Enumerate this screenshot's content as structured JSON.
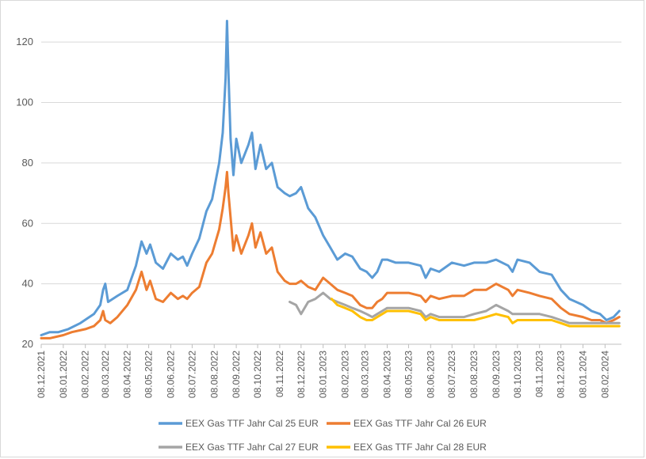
{
  "chart_data": {
    "type": "line",
    "title": "",
    "xlabel": "",
    "ylabel": "",
    "ylim": [
      20,
      130
    ],
    "y_ticks": [
      20,
      40,
      60,
      80,
      100,
      120
    ],
    "x_ticks": [
      "08.12.2021",
      "08.01.2022",
      "08.02.2022",
      "08.03.2022",
      "08.04.2022",
      "08.05.2022",
      "08.06.2022",
      "08.07.2022",
      "08.08.2022",
      "08.09.2022",
      "08.10.2022",
      "08.11.2022",
      "08.12.2022",
      "08.01.2023",
      "08.02.2023",
      "08.03.2023",
      "08.04.2023",
      "08.05.2023",
      "08.06.2023",
      "08.07.2023",
      "08.08.2023",
      "08.09.2023",
      "08.10.2023",
      "08.11.2023",
      "08.12.2023",
      "08.01.2024",
      "08.02.2024"
    ],
    "grid": "horizontal",
    "legend_position": "bottom",
    "series": [
      {
        "name": "EEX Gas TTF Jahr Cal 25 EUR",
        "color": "#5b9bd5",
        "points": [
          [
            "2021-12-08",
            23
          ],
          [
            "2021-12-20",
            24
          ],
          [
            "2022-01-01",
            24
          ],
          [
            "2022-01-15",
            25
          ],
          [
            "2022-02-01",
            27
          ],
          [
            "2022-02-20",
            30
          ],
          [
            "2022-03-01",
            33
          ],
          [
            "2022-03-05",
            38
          ],
          [
            "2022-03-08",
            40
          ],
          [
            "2022-03-12",
            34
          ],
          [
            "2022-03-25",
            36
          ],
          [
            "2022-04-08",
            38
          ],
          [
            "2022-04-20",
            46
          ],
          [
            "2022-04-28",
            54
          ],
          [
            "2022-05-05",
            50
          ],
          [
            "2022-05-10",
            53
          ],
          [
            "2022-05-18",
            47
          ],
          [
            "2022-05-28",
            45
          ],
          [
            "2022-06-08",
            50
          ],
          [
            "2022-06-18",
            48
          ],
          [
            "2022-06-25",
            49
          ],
          [
            "2022-07-01",
            46
          ],
          [
            "2022-07-08",
            50
          ],
          [
            "2022-07-18",
            55
          ],
          [
            "2022-07-28",
            64
          ],
          [
            "2022-08-05",
            68
          ],
          [
            "2022-08-15",
            80
          ],
          [
            "2022-08-20",
            90
          ],
          [
            "2022-08-24",
            108
          ],
          [
            "2022-08-26",
            127
          ],
          [
            "2022-08-28",
            110
          ],
          [
            "2022-08-31",
            88
          ],
          [
            "2022-09-04",
            76
          ],
          [
            "2022-09-08",
            88
          ],
          [
            "2022-09-15",
            80
          ],
          [
            "2022-09-25",
            86
          ],
          [
            "2022-09-30",
            90
          ],
          [
            "2022-10-05",
            78
          ],
          [
            "2022-10-12",
            86
          ],
          [
            "2022-10-20",
            78
          ],
          [
            "2022-10-28",
            80
          ],
          [
            "2022-11-05",
            72
          ],
          [
            "2022-11-15",
            70
          ],
          [
            "2022-11-22",
            69
          ],
          [
            "2022-12-01",
            70
          ],
          [
            "2022-12-08",
            72
          ],
          [
            "2022-12-18",
            65
          ],
          [
            "2022-12-28",
            62
          ],
          [
            "2023-01-08",
            56
          ],
          [
            "2023-01-18",
            52
          ],
          [
            "2023-01-28",
            48
          ],
          [
            "2023-02-08",
            50
          ],
          [
            "2023-02-18",
            49
          ],
          [
            "2023-03-01",
            45
          ],
          [
            "2023-03-10",
            44
          ],
          [
            "2023-03-18",
            42
          ],
          [
            "2023-03-25",
            44
          ],
          [
            "2023-04-01",
            48
          ],
          [
            "2023-04-08",
            48
          ],
          [
            "2023-04-20",
            47
          ],
          [
            "2023-05-08",
            47
          ],
          [
            "2023-05-25",
            46
          ],
          [
            "2023-06-01",
            42
          ],
          [
            "2023-06-08",
            45
          ],
          [
            "2023-06-20",
            44
          ],
          [
            "2023-07-08",
            47
          ],
          [
            "2023-07-25",
            46
          ],
          [
            "2023-08-08",
            47
          ],
          [
            "2023-08-25",
            47
          ],
          [
            "2023-09-08",
            48
          ],
          [
            "2023-09-25",
            46
          ],
          [
            "2023-10-01",
            44
          ],
          [
            "2023-10-08",
            48
          ],
          [
            "2023-10-25",
            47
          ],
          [
            "2023-11-08",
            44
          ],
          [
            "2023-11-25",
            43
          ],
          [
            "2023-12-08",
            38
          ],
          [
            "2023-12-20",
            35
          ],
          [
            "2024-01-08",
            33
          ],
          [
            "2024-01-20",
            31
          ],
          [
            "2024-02-01",
            30
          ],
          [
            "2024-02-10",
            28
          ],
          [
            "2024-02-20",
            29
          ],
          [
            "2024-02-28",
            31
          ]
        ]
      },
      {
        "name": "EEX Gas TTF Jahr Cal 26 EUR",
        "color": "#ed7d31",
        "points": [
          [
            "2021-12-08",
            22
          ],
          [
            "2021-12-20",
            22
          ],
          [
            "2022-01-08",
            23
          ],
          [
            "2022-01-20",
            24
          ],
          [
            "2022-02-08",
            25
          ],
          [
            "2022-02-20",
            26
          ],
          [
            "2022-03-01",
            28
          ],
          [
            "2022-03-05",
            31
          ],
          [
            "2022-03-08",
            28
          ],
          [
            "2022-03-15",
            27
          ],
          [
            "2022-03-25",
            29
          ],
          [
            "2022-04-08",
            33
          ],
          [
            "2022-04-20",
            38
          ],
          [
            "2022-04-28",
            44
          ],
          [
            "2022-05-05",
            38
          ],
          [
            "2022-05-10",
            41
          ],
          [
            "2022-05-18",
            35
          ],
          [
            "2022-05-28",
            34
          ],
          [
            "2022-06-08",
            37
          ],
          [
            "2022-06-18",
            35
          ],
          [
            "2022-06-25",
            36
          ],
          [
            "2022-07-01",
            35
          ],
          [
            "2022-07-08",
            37
          ],
          [
            "2022-07-18",
            39
          ],
          [
            "2022-07-28",
            47
          ],
          [
            "2022-08-05",
            50
          ],
          [
            "2022-08-15",
            58
          ],
          [
            "2022-08-20",
            65
          ],
          [
            "2022-08-24",
            72
          ],
          [
            "2022-08-26",
            77
          ],
          [
            "2022-08-28",
            70
          ],
          [
            "2022-08-31",
            62
          ],
          [
            "2022-09-04",
            51
          ],
          [
            "2022-09-08",
            56
          ],
          [
            "2022-09-15",
            50
          ],
          [
            "2022-09-25",
            56
          ],
          [
            "2022-09-30",
            60
          ],
          [
            "2022-10-05",
            52
          ],
          [
            "2022-10-12",
            57
          ],
          [
            "2022-10-20",
            50
          ],
          [
            "2022-10-28",
            52
          ],
          [
            "2022-11-05",
            44
          ],
          [
            "2022-11-15",
            41
          ],
          [
            "2022-11-22",
            40
          ],
          [
            "2022-12-01",
            40
          ],
          [
            "2022-12-08",
            41
          ],
          [
            "2022-12-18",
            39
          ],
          [
            "2022-12-28",
            38
          ],
          [
            "2023-01-08",
            42
          ],
          [
            "2023-01-18",
            40
          ],
          [
            "2023-01-28",
            38
          ],
          [
            "2023-02-08",
            37
          ],
          [
            "2023-02-18",
            36
          ],
          [
            "2023-03-01",
            33
          ],
          [
            "2023-03-10",
            32
          ],
          [
            "2023-03-18",
            32
          ],
          [
            "2023-03-25",
            34
          ],
          [
            "2023-04-01",
            35
          ],
          [
            "2023-04-08",
            37
          ],
          [
            "2023-04-20",
            37
          ],
          [
            "2023-05-08",
            37
          ],
          [
            "2023-05-25",
            36
          ],
          [
            "2023-06-01",
            34
          ],
          [
            "2023-06-08",
            36
          ],
          [
            "2023-06-20",
            35
          ],
          [
            "2023-07-08",
            36
          ],
          [
            "2023-07-25",
            36
          ],
          [
            "2023-08-08",
            38
          ],
          [
            "2023-08-25",
            38
          ],
          [
            "2023-09-08",
            40
          ],
          [
            "2023-09-25",
            38
          ],
          [
            "2023-10-01",
            36
          ],
          [
            "2023-10-08",
            38
          ],
          [
            "2023-10-25",
            37
          ],
          [
            "2023-11-08",
            36
          ],
          [
            "2023-11-25",
            35
          ],
          [
            "2023-12-08",
            32
          ],
          [
            "2023-12-20",
            30
          ],
          [
            "2024-01-08",
            29
          ],
          [
            "2024-01-20",
            28
          ],
          [
            "2024-02-01",
            28
          ],
          [
            "2024-02-10",
            27
          ],
          [
            "2024-02-20",
            28
          ],
          [
            "2024-02-28",
            29
          ]
        ]
      },
      {
        "name": "EEX Gas TTF Jahr Cal 27 EUR",
        "color": "#a5a5a5",
        "points": [
          [
            "2022-11-22",
            34
          ],
          [
            "2022-12-01",
            33
          ],
          [
            "2022-12-08",
            30
          ],
          [
            "2022-12-18",
            34
          ],
          [
            "2022-12-28",
            35
          ],
          [
            "2023-01-08",
            37
          ],
          [
            "2023-01-18",
            35
          ],
          [
            "2023-01-28",
            34
          ],
          [
            "2023-02-08",
            33
          ],
          [
            "2023-02-18",
            32
          ],
          [
            "2023-03-01",
            31
          ],
          [
            "2023-03-10",
            30
          ],
          [
            "2023-03-18",
            29
          ],
          [
            "2023-03-25",
            30
          ],
          [
            "2023-04-01",
            31
          ],
          [
            "2023-04-08",
            32
          ],
          [
            "2023-04-20",
            32
          ],
          [
            "2023-05-08",
            32
          ],
          [
            "2023-05-25",
            31
          ],
          [
            "2023-06-01",
            29
          ],
          [
            "2023-06-08",
            30
          ],
          [
            "2023-06-20",
            29
          ],
          [
            "2023-07-08",
            29
          ],
          [
            "2023-07-25",
            29
          ],
          [
            "2023-08-08",
            30
          ],
          [
            "2023-08-25",
            31
          ],
          [
            "2023-09-08",
            33
          ],
          [
            "2023-09-25",
            31
          ],
          [
            "2023-10-01",
            30
          ],
          [
            "2023-10-08",
            30
          ],
          [
            "2023-10-25",
            30
          ],
          [
            "2023-11-08",
            30
          ],
          [
            "2023-11-25",
            29
          ],
          [
            "2023-12-08",
            28
          ],
          [
            "2023-12-20",
            27
          ],
          [
            "2024-01-08",
            27
          ],
          [
            "2024-01-20",
            27
          ],
          [
            "2024-02-01",
            27
          ],
          [
            "2024-02-10",
            27
          ],
          [
            "2024-02-20",
            27
          ],
          [
            "2024-02-28",
            27
          ]
        ]
      },
      {
        "name": "EEX Gas TTF Jahr Cal 28 EUR",
        "color": "#ffc000",
        "points": [
          [
            "2023-01-20",
            35
          ],
          [
            "2023-01-28",
            33
          ],
          [
            "2023-02-08",
            32
          ],
          [
            "2023-02-18",
            31
          ],
          [
            "2023-03-01",
            29
          ],
          [
            "2023-03-10",
            28
          ],
          [
            "2023-03-18",
            28
          ],
          [
            "2023-03-25",
            29
          ],
          [
            "2023-04-01",
            30
          ],
          [
            "2023-04-08",
            31
          ],
          [
            "2023-04-20",
            31
          ],
          [
            "2023-05-08",
            31
          ],
          [
            "2023-05-25",
            30
          ],
          [
            "2023-06-01",
            28
          ],
          [
            "2023-06-08",
            29
          ],
          [
            "2023-06-20",
            28
          ],
          [
            "2023-07-08",
            28
          ],
          [
            "2023-07-25",
            28
          ],
          [
            "2023-08-08",
            28
          ],
          [
            "2023-08-25",
            29
          ],
          [
            "2023-09-08",
            30
          ],
          [
            "2023-09-25",
            29
          ],
          [
            "2023-10-01",
            27
          ],
          [
            "2023-10-08",
            28
          ],
          [
            "2023-10-25",
            28
          ],
          [
            "2023-11-08",
            28
          ],
          [
            "2023-11-25",
            28
          ],
          [
            "2023-12-08",
            27
          ],
          [
            "2023-12-20",
            26
          ],
          [
            "2024-01-08",
            26
          ],
          [
            "2024-01-20",
            26
          ],
          [
            "2024-02-01",
            26
          ],
          [
            "2024-02-10",
            26
          ],
          [
            "2024-02-20",
            26
          ],
          [
            "2024-02-28",
            26
          ]
        ]
      }
    ]
  }
}
